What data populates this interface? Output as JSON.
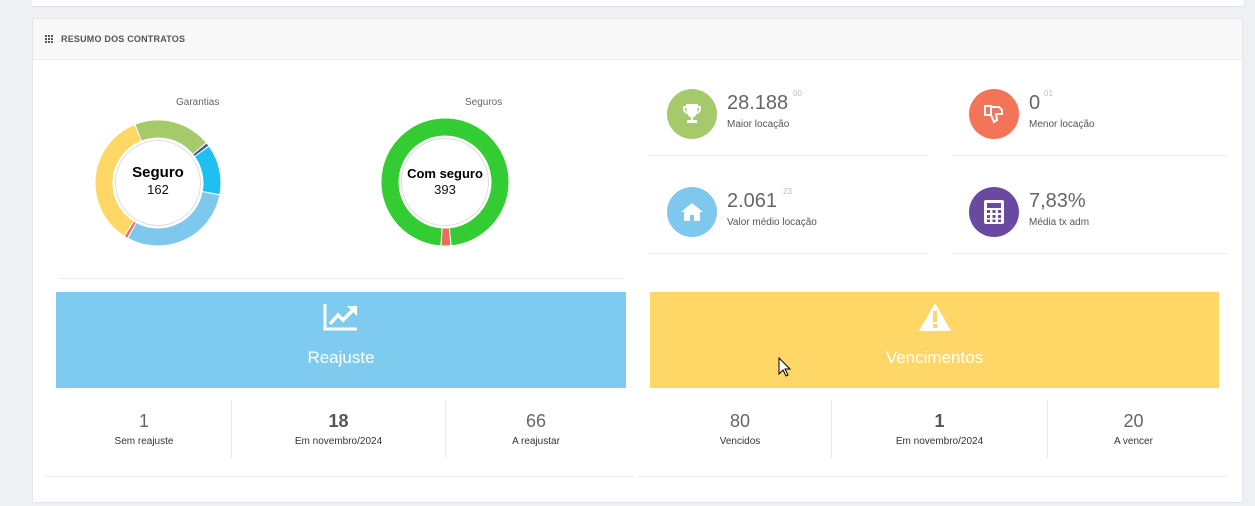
{
  "panel": {
    "title": "RESUMO DOS CONTRATOS",
    "icon": "grid-icon"
  },
  "garantias": {
    "label": "Garantias",
    "center_title": "Seguro",
    "center_value": "162",
    "segments": [
      {
        "color": "#a5c96b",
        "value": 0.2
      },
      {
        "color": "#3f5a8a",
        "value": 0.01
      },
      {
        "color": "#1ec0f2",
        "value": 0.13
      },
      {
        "color": "#7ec8ee",
        "value": 0.3
      },
      {
        "color": "#e96f5b",
        "value": 0.01
      },
      {
        "color": "#fed766",
        "value": 0.35
      }
    ]
  },
  "seguros": {
    "label": "Seguros",
    "center_title": "Com seguro",
    "center_value": "393",
    "segments": [
      {
        "color": "#33cc33",
        "value": 0.975
      },
      {
        "color": "#e96f5b",
        "value": 0.025
      }
    ]
  },
  "stats": [
    {
      "name": "maior-locacao",
      "value": "28.188",
      "sup": "00",
      "label": "Maior locação",
      "color": "#a5c96b",
      "icon": "trophy-icon"
    },
    {
      "name": "menor-locacao",
      "value": "0",
      "sup": "01",
      "label": "Menor locação",
      "color": "#f47457",
      "icon": "thumbs-down-icon"
    },
    {
      "name": "valor-medio",
      "value": "2.061",
      "sup": "23",
      "label": "Valor médio locação",
      "color": "#7ec8ee",
      "icon": "home-icon"
    },
    {
      "name": "media-tx-adm",
      "value": "7,83%",
      "sup": "",
      "label": "Média tx adm",
      "color": "#6a4aa0",
      "icon": "calculator-icon"
    }
  ],
  "reajuste": {
    "title": "Reajuste",
    "color": "#7ecbef",
    "icon": "chart-line-icon",
    "counts": [
      {
        "num": "1",
        "cap": "Sem reajuste"
      },
      {
        "num": "18",
        "cap": "Em novembro/2024"
      },
      {
        "num": "66",
        "cap": "A reajustar"
      }
    ]
  },
  "vencimentos": {
    "title": "Vencimentos",
    "color": "#fed766",
    "icon": "warning-icon",
    "counts": [
      {
        "num": "80",
        "cap": "Vencidos"
      },
      {
        "num": "1",
        "cap": "Em novembro/2024"
      },
      {
        "num": "20",
        "cap": "A vencer"
      }
    ]
  }
}
